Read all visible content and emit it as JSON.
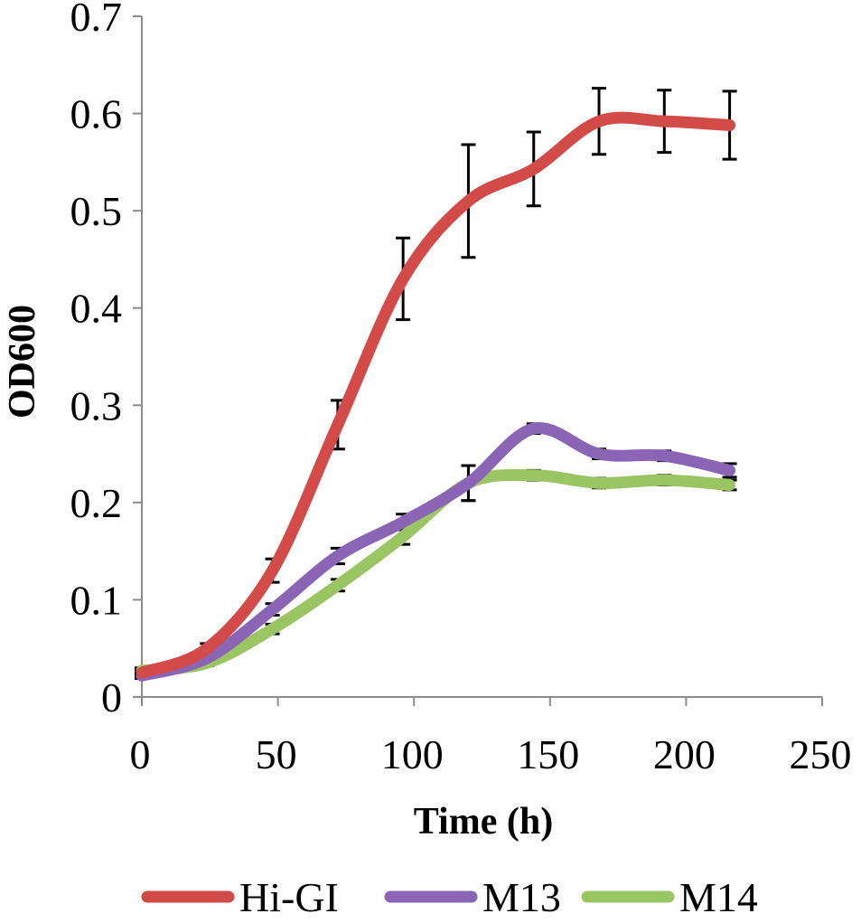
{
  "chart_data": {
    "type": "line",
    "title": "",
    "xlabel": "Time (h)",
    "ylabel": "OD600",
    "xlim": [
      0,
      250
    ],
    "ylim": [
      0,
      0.7
    ],
    "xticks": [
      0,
      50,
      100,
      150,
      200,
      250
    ],
    "yticks": [
      0,
      0.1,
      0.2,
      0.3,
      0.4,
      0.5,
      0.6,
      0.7
    ],
    "xtick_labels": [
      "0",
      "50",
      "100",
      "150",
      "200",
      "250"
    ],
    "ytick_labels": [
      "0",
      "0.1",
      "0.2",
      "0.3",
      "0.4",
      "0.5",
      "0.6",
      "0.7"
    ],
    "grid": false,
    "legend_position": "bottom",
    "x": [
      0,
      24,
      48,
      72,
      96,
      120,
      144,
      168,
      192,
      216
    ],
    "series": [
      {
        "name": "Hi-GI",
        "color": "#d24b49",
        "values": [
          0.025,
          0.05,
          0.13,
          0.28,
          0.43,
          0.51,
          0.543,
          0.592,
          0.592,
          0.588
        ],
        "errors": [
          0.003,
          0.005,
          0.012,
          0.025,
          0.042,
          0.058,
          0.038,
          0.034,
          0.032,
          0.035
        ]
      },
      {
        "name": "M13",
        "color": "#8b65b5",
        "values": [
          0.022,
          0.04,
          0.09,
          0.145,
          0.18,
          0.22,
          0.276,
          0.25,
          0.248,
          0.233
        ],
        "errors": [
          0.003,
          0.004,
          0.006,
          0.008,
          0.008,
          0.018,
          0.005,
          0.005,
          0.005,
          0.007
        ]
      },
      {
        "name": "M14",
        "color": "#9bc563",
        "values": [
          0.027,
          0.035,
          0.07,
          0.115,
          0.165,
          0.22,
          0.228,
          0.22,
          0.223,
          0.218
        ],
        "errors": [
          0.003,
          0.003,
          0.005,
          0.006,
          0.008,
          0.018,
          0.005,
          0.005,
          0.005,
          0.005
        ]
      }
    ]
  }
}
